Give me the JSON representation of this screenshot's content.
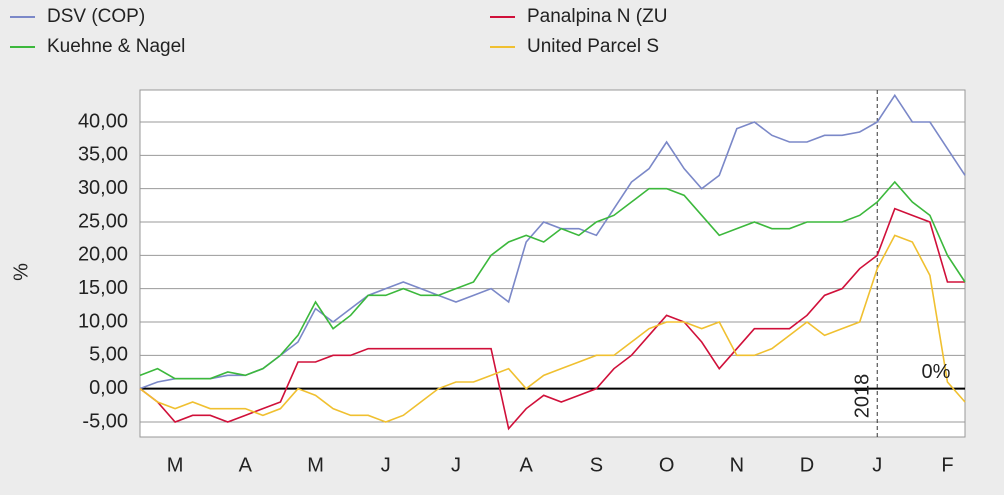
{
  "chart_data": {
    "type": "line",
    "y_label": "%",
    "year_marker": "2018",
    "zero_label": "0%",
    "categories": [
      null,
      null,
      "M",
      null,
      null,
      null,
      "A",
      null,
      null,
      null,
      "M",
      null,
      null,
      null,
      "J",
      null,
      null,
      null,
      "J",
      null,
      null,
      null,
      "A",
      null,
      null,
      null,
      "S",
      null,
      null,
      null,
      "O",
      null,
      null,
      null,
      "N",
      null,
      null,
      null,
      "D",
      null,
      null,
      null,
      "J",
      null,
      null,
      null,
      "F",
      null
    ],
    "series": [
      {
        "name": "DSV (COP)",
        "color": "#7b88c8",
        "values": [
          0,
          1,
          1.5,
          1.5,
          1.5,
          2,
          2,
          3,
          5,
          7,
          12,
          10,
          12,
          14,
          15,
          16,
          15,
          14,
          13,
          14,
          15,
          13,
          22,
          25,
          24,
          24,
          23,
          27,
          31,
          33,
          37,
          33,
          30,
          32,
          39,
          40,
          38,
          37,
          37,
          38,
          38,
          38.5,
          40,
          44,
          40,
          40,
          36,
          32
        ]
      },
      {
        "name": "Panalpina N (ZU",
        "color": "#d0103a",
        "values": [
          0,
          -2,
          -5,
          -4,
          -4,
          -5,
          -4,
          -3,
          -2,
          4,
          4,
          5,
          5,
          6,
          6,
          6,
          6,
          6,
          6,
          6,
          6,
          -6,
          -3,
          -1,
          -2,
          -1,
          0,
          3,
          5,
          8,
          11,
          10,
          7,
          3,
          6,
          9,
          9,
          9,
          11,
          14,
          15,
          18,
          20,
          27,
          26,
          25,
          16,
          16
        ]
      },
      {
        "name": "Kuehne & Nagel",
        "color": "#3cb83c",
        "values": [
          2,
          3,
          1.5,
          1.5,
          1.5,
          2.5,
          2,
          3,
          5,
          8,
          13,
          9,
          11,
          14,
          14,
          15,
          14,
          14,
          15,
          16,
          20,
          22,
          23,
          22,
          24,
          23,
          25,
          26,
          28,
          30,
          30,
          29,
          26,
          23,
          24,
          25,
          24,
          24,
          25,
          25,
          25,
          26,
          28,
          31,
          28,
          26,
          20,
          16
        ]
      },
      {
        "name": "United Parcel S",
        "color": "#f0c030",
        "values": [
          0,
          -2,
          -3,
          -2,
          -3,
          -3,
          -3,
          -4,
          -3,
          0,
          -1,
          -3,
          -4,
          -4,
          -5,
          -4,
          -2,
          0,
          1,
          1,
          2,
          3,
          0,
          2,
          3,
          4,
          5,
          5,
          7,
          9,
          10,
          10,
          9,
          10,
          5,
          5,
          6,
          8,
          10,
          8,
          9,
          10,
          18,
          23,
          22,
          17,
          1,
          -2
        ]
      }
    ],
    "ylim": [
      -7.25,
      44.8
    ],
    "yticks": [
      {
        "value": 40,
        "label": "40,00"
      },
      {
        "value": 35,
        "label": "35,00"
      },
      {
        "value": 30,
        "label": "30,00"
      },
      {
        "value": 25,
        "label": "25,00"
      },
      {
        "value": 20,
        "label": "20,00"
      },
      {
        "value": 15,
        "label": "15,00"
      },
      {
        "value": 10,
        "label": "10,00"
      },
      {
        "value": 5,
        "label": "5,00"
      },
      {
        "value": 0,
        "label": "0,00"
      },
      {
        "value": -5,
        "label": "-5,00"
      }
    ],
    "grid": true,
    "legend": "top"
  }
}
